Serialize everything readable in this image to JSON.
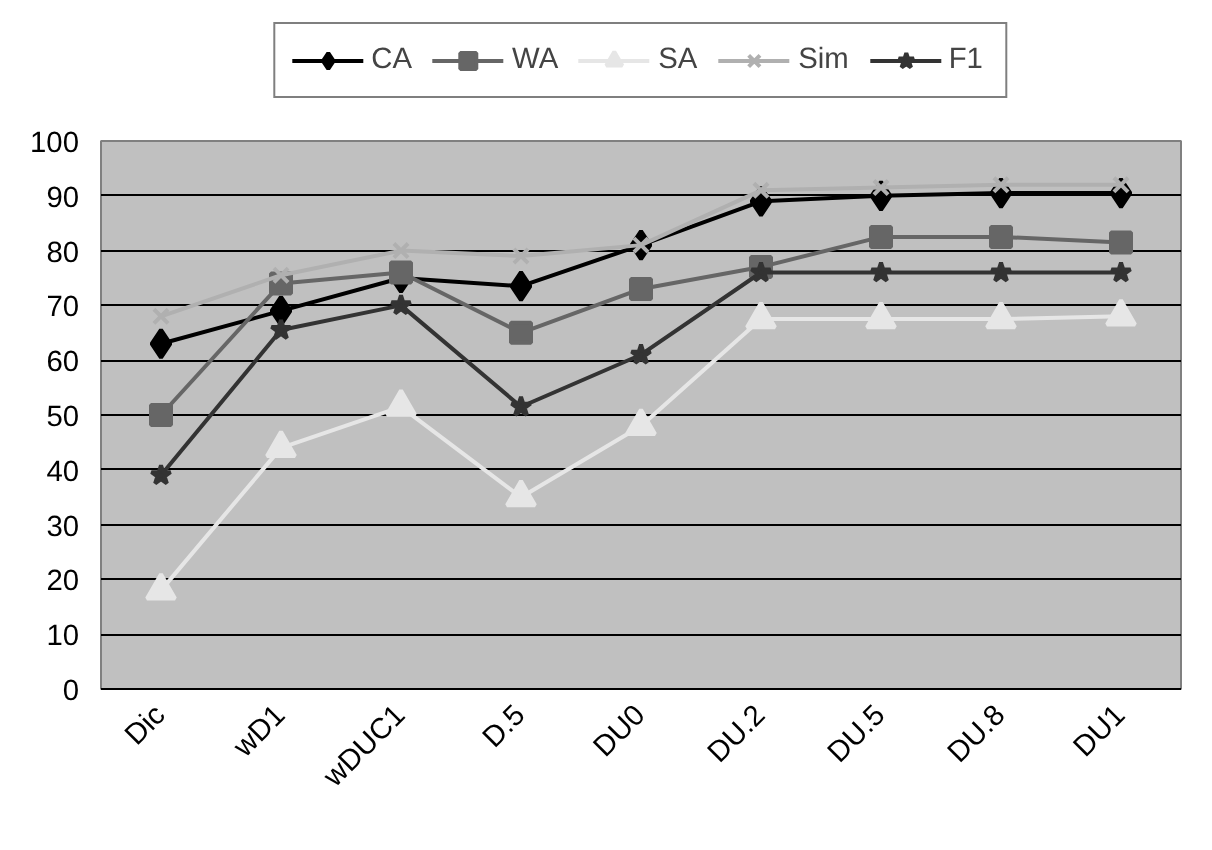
{
  "chart_data": {
    "type": "line",
    "categories": [
      "Dic",
      "wD1",
      "wDUC1",
      "D.5",
      "DU0",
      "DU.2",
      "DU.5",
      "DU.8",
      "DU1"
    ],
    "ylim": [
      0,
      100
    ],
    "yticks": [
      0,
      10,
      20,
      30,
      40,
      50,
      60,
      70,
      80,
      90,
      100
    ],
    "grid": "y",
    "legend": "top",
    "series": [
      {
        "name": "CA",
        "color": "#000000",
        "marker": "diamond",
        "values": [
          63,
          69,
          75,
          73.5,
          81,
          89,
          90,
          90.5,
          90.5
        ]
      },
      {
        "name": "WA",
        "color": "#666666",
        "marker": "square",
        "values": [
          50,
          74,
          76,
          65,
          73,
          77,
          82.5,
          82.5,
          81.5
        ]
      },
      {
        "name": "SA",
        "color": "#e6e6e6",
        "marker": "triangle",
        "values": [
          18,
          44,
          51.5,
          35,
          48,
          67.5,
          67.5,
          67.5,
          68
        ]
      },
      {
        "name": "Sim",
        "color": "#b0b0b0",
        "marker": "cross",
        "values": [
          68,
          75.5,
          80,
          79,
          81,
          91,
          91.5,
          92,
          92
        ]
      },
      {
        "name": "F1",
        "color": "#333333",
        "marker": "star",
        "values": [
          39,
          65.5,
          70,
          51.5,
          61,
          76,
          76,
          76,
          76
        ]
      }
    ]
  }
}
